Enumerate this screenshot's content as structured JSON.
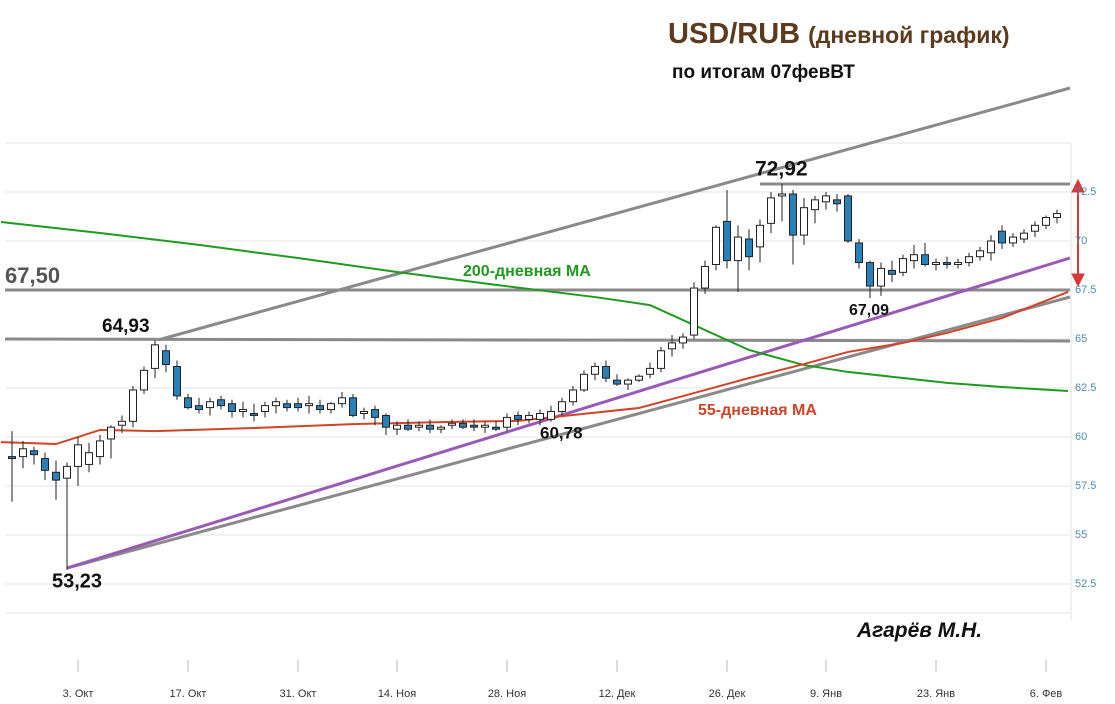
{
  "chart_data": {
    "type": "candlestick",
    "title": "USD/RUB",
    "title_suffix": "(дневной график)",
    "subtitle": "по итогам 07февВТ",
    "author": "Агарёв М.Н.",
    "up_color": "#ffffff",
    "down_color": "#2a80b9",
    "grid": true,
    "ylim": [
      51,
      75
    ],
    "yticks": [
      52.5,
      55,
      57.5,
      60,
      62.5,
      65,
      67.5,
      70,
      72.5
    ],
    "categories": [
      null,
      null,
      null,
      null,
      null,
      null,
      "3. Окт",
      null,
      null,
      null,
      null,
      null,
      null,
      null,
      null,
      null,
      "17. Окт",
      null,
      null,
      null,
      null,
      null,
      null,
      null,
      null,
      null,
      "31. Окт",
      null,
      null,
      null,
      null,
      null,
      null,
      null,
      null,
      "14. Ноя",
      null,
      null,
      null,
      null,
      null,
      null,
      null,
      null,
      null,
      "28. Ноя",
      null,
      null,
      null,
      null,
      null,
      null,
      null,
      null,
      null,
      "12. Дек",
      null,
      null,
      null,
      null,
      null,
      null,
      null,
      null,
      null,
      "26. Дек",
      null,
      null,
      null,
      null,
      null,
      null,
      null,
      null,
      "9. Янв",
      null,
      null,
      null,
      null,
      null,
      null,
      null,
      null,
      null,
      "23. Янв",
      null,
      null,
      null,
      null,
      null,
      null,
      null,
      null,
      null,
      "6. Фев",
      null
    ],
    "open": [
      59.0,
      59.0,
      59.3,
      58.9,
      58.2,
      57.9,
      58.5,
      58.6,
      59.0,
      59.9,
      60.6,
      60.8,
      62.4,
      63.5,
      64.4,
      63.6,
      62.0,
      61.6,
      61.5,
      61.9,
      61.7,
      61.3,
      61.2,
      61.3,
      61.6,
      61.7,
      61.7,
      61.6,
      61.6,
      61.4,
      61.7,
      62.0,
      61.2,
      61.4,
      61.1,
      60.4,
      60.6,
      60.5,
      60.6,
      60.4,
      60.6,
      60.7,
      60.6,
      60.5,
      60.5,
      60.5,
      61.1,
      60.9,
      60.9,
      60.9,
      61.3,
      61.8,
      62.4,
      63.2,
      63.6,
      62.9,
      62.7,
      62.9,
      63.2,
      63.5,
      64.5,
      64.8,
      65.2,
      67.6,
      68.8,
      71.0,
      69.0,
      70.1,
      69.7,
      70.9,
      72.3,
      72.4,
      70.3,
      71.6,
      72.0,
      72.1,
      72.3,
      69.9,
      68.9,
      67.7,
      68.5,
      68.4,
      69.0,
      69.3,
      68.8,
      68.9,
      68.8,
      68.9,
      69.2,
      69.4,
      70.5,
      69.9,
      70.1,
      70.5,
      70.8,
      71.2
    ],
    "high": [
      60.3,
      59.8,
      59.5,
      59.2,
      58.8,
      58.7,
      60.0,
      59.7,
      60.1,
      60.6,
      61.1,
      62.6,
      63.6,
      64.93,
      64.7,
      63.9,
      62.2,
      62.0,
      62.0,
      62.1,
      61.9,
      61.8,
      61.7,
      61.8,
      62.0,
      61.9,
      62.0,
      62.1,
      61.9,
      61.8,
      62.3,
      62.2,
      61.5,
      61.6,
      61.2,
      60.8,
      60.9,
      60.8,
      60.9,
      60.6,
      60.9,
      60.9,
      60.9,
      60.8,
      60.8,
      61.2,
      61.3,
      61.3,
      61.4,
      61.6,
      62.0,
      62.6,
      63.4,
      63.8,
      63.9,
      63.2,
      63.0,
      63.2,
      63.8,
      64.6,
      65.2,
      65.3,
      67.9,
      69.0,
      70.8,
      72.6,
      70.8,
      70.6,
      71.1,
      72.5,
      72.92,
      72.6,
      72.2,
      72.3,
      72.5,
      72.4,
      72.4,
      70.1,
      69.0,
      68.9,
      69.0,
      69.3,
      69.8,
      69.9,
      69.1,
      69.2,
      69.1,
      69.4,
      69.7,
      70.3,
      70.8,
      70.4,
      70.6,
      71.0,
      71.3,
      71.6
    ],
    "low": [
      56.7,
      58.4,
      58.6,
      57.8,
      56.8,
      53.23,
      57.5,
      58.2,
      58.6,
      58.9,
      60.2,
      60.5,
      62.2,
      63.0,
      63.3,
      61.9,
      61.4,
      61.2,
      61.1,
      61.4,
      61.0,
      61.0,
      60.8,
      61.0,
      61.2,
      61.3,
      61.3,
      61.2,
      61.2,
      61.2,
      61.5,
      61.0,
      60.9,
      60.6,
      60.1,
      60.1,
      60.3,
      60.3,
      60.2,
      60.2,
      60.4,
      60.4,
      60.3,
      60.2,
      60.3,
      60.3,
      60.6,
      60.7,
      60.6,
      60.78,
      61.1,
      61.6,
      62.3,
      62.9,
      62.8,
      62.6,
      62.4,
      62.8,
      63.0,
      63.3,
      64.1,
      64.5,
      65.0,
      67.3,
      68.5,
      68.6,
      67.4,
      68.5,
      68.9,
      70.4,
      71.0,
      68.8,
      69.8,
      70.9,
      71.6,
      71.5,
      69.9,
      68.6,
      67.09,
      67.2,
      67.9,
      68.2,
      68.6,
      68.7,
      68.5,
      68.6,
      68.6,
      68.7,
      69.0,
      69.0,
      69.6,
      69.7,
      69.9,
      70.2,
      70.6,
      70.9
    ],
    "close": [
      58.9,
      59.4,
      59.1,
      58.3,
      57.8,
      58.5,
      59.6,
      59.2,
      59.8,
      60.5,
      60.8,
      62.4,
      63.4,
      64.7,
      63.7,
      62.1,
      61.5,
      61.4,
      61.8,
      61.6,
      61.3,
      61.4,
      61.1,
      61.6,
      61.8,
      61.5,
      61.5,
      61.7,
      61.4,
      61.7,
      62.0,
      61.1,
      61.3,
      61.0,
      60.5,
      60.6,
      60.4,
      60.6,
      60.4,
      60.5,
      60.7,
      60.5,
      60.5,
      60.6,
      60.4,
      61.0,
      60.9,
      61.1,
      61.2,
      61.3,
      61.8,
      62.4,
      63.2,
      63.6,
      63.0,
      62.7,
      62.9,
      63.1,
      63.5,
      64.4,
      64.8,
      65.1,
      67.6,
      68.7,
      70.7,
      69.0,
      70.2,
      69.2,
      70.8,
      72.2,
      72.4,
      70.3,
      71.7,
      72.1,
      72.3,
      71.9,
      70.0,
      68.9,
      67.7,
      68.6,
      68.3,
      69.1,
      69.3,
      68.8,
      68.9,
      68.8,
      68.9,
      69.2,
      69.5,
      70.0,
      69.9,
      70.2,
      70.4,
      70.8,
      71.2,
      71.4
    ],
    "moving_averages": [
      {
        "name": "200-дневная MA",
        "color": "#1f9a1f",
        "x": [
          -1,
          8,
          17,
          26,
          35,
          44,
          53,
          58,
          62,
          67,
          72,
          76,
          81,
          85,
          90,
          96
        ],
        "values": [
          70.97,
          70.41,
          69.8,
          69.13,
          68.42,
          67.76,
          67.14,
          66.73,
          65.71,
          64.44,
          63.67,
          63.32,
          63.01,
          62.76,
          62.55,
          62.35
        ]
      },
      {
        "name": "55-дневная MA",
        "color": "#d0452a",
        "x": [
          -1,
          4,
          8,
          13,
          22,
          31,
          40,
          46,
          51,
          57,
          62,
          67,
          72,
          76,
          81,
          85,
          90,
          96
        ],
        "values": [
          59.74,
          59.64,
          60.36,
          60.3,
          60.46,
          60.66,
          60.77,
          60.82,
          61.12,
          61.48,
          62.24,
          63.01,
          63.72,
          64.34,
          64.8,
          65.31,
          66.07,
          67.4
        ]
      }
    ],
    "annotations": [
      "67,50",
      "64,93",
      "72,92",
      "53,23",
      "60,78",
      "67,09"
    ]
  }
}
